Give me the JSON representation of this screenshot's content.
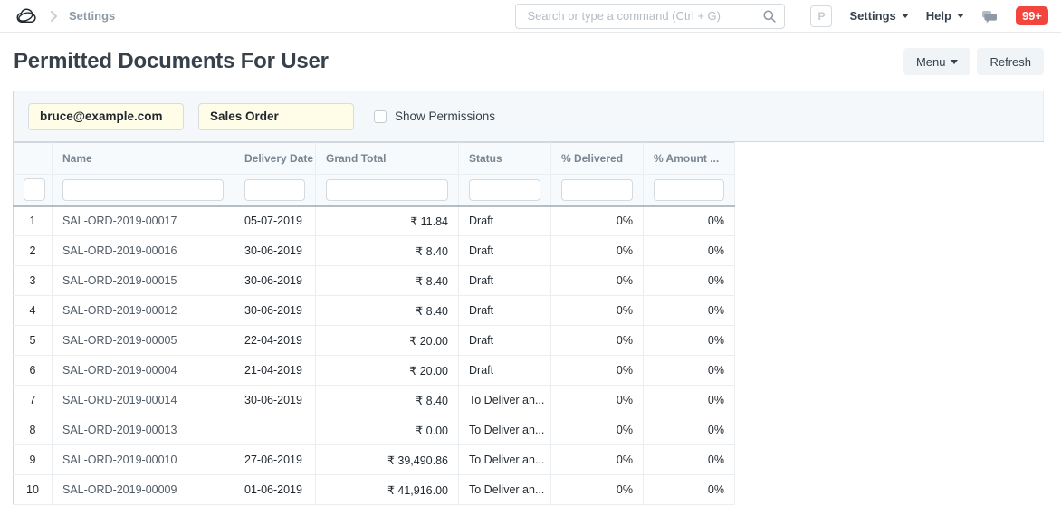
{
  "navbar": {
    "breadcrumb": "Settings",
    "search_placeholder": "Search or type a command (Ctrl + G)",
    "avatar_letter": "P",
    "settings_label": "Settings",
    "help_label": "Help",
    "notification_count": "99+"
  },
  "page": {
    "title": "Permitted Documents For User",
    "menu_button": "Menu",
    "refresh_button": "Refresh"
  },
  "filters": {
    "user_value": "bruce@example.com",
    "doctype_value": "Sales Order",
    "show_permissions_label": "Show Permissions",
    "show_permissions_checked": false
  },
  "table": {
    "columns": [
      {
        "key": "idx",
        "label": ""
      },
      {
        "key": "name",
        "label": "Name"
      },
      {
        "key": "delivery_date",
        "label": "Delivery Date"
      },
      {
        "key": "grand_total",
        "label": "Grand Total"
      },
      {
        "key": "status",
        "label": "Status"
      },
      {
        "key": "pct_delivered",
        "label": "% Delivered"
      },
      {
        "key": "pct_amount",
        "label": "% Amount ..."
      }
    ],
    "rows": [
      {
        "idx": "1",
        "name": "SAL-ORD-2019-00017",
        "delivery_date": "05-07-2019",
        "grand_total": "₹ 11.84",
        "status": "Draft",
        "pct_delivered": "0%",
        "pct_amount": "0%"
      },
      {
        "idx": "2",
        "name": "SAL-ORD-2019-00016",
        "delivery_date": "30-06-2019",
        "grand_total": "₹ 8.40",
        "status": "Draft",
        "pct_delivered": "0%",
        "pct_amount": "0%"
      },
      {
        "idx": "3",
        "name": "SAL-ORD-2019-00015",
        "delivery_date": "30-06-2019",
        "grand_total": "₹ 8.40",
        "status": "Draft",
        "pct_delivered": "0%",
        "pct_amount": "0%"
      },
      {
        "idx": "4",
        "name": "SAL-ORD-2019-00012",
        "delivery_date": "30-06-2019",
        "grand_total": "₹ 8.40",
        "status": "Draft",
        "pct_delivered": "0%",
        "pct_amount": "0%"
      },
      {
        "idx": "5",
        "name": "SAL-ORD-2019-00005",
        "delivery_date": "22-04-2019",
        "grand_total": "₹ 20.00",
        "status": "Draft",
        "pct_delivered": "0%",
        "pct_amount": "0%"
      },
      {
        "idx": "6",
        "name": "SAL-ORD-2019-00004",
        "delivery_date": "21-04-2019",
        "grand_total": "₹ 20.00",
        "status": "Draft",
        "pct_delivered": "0%",
        "pct_amount": "0%"
      },
      {
        "idx": "7",
        "name": "SAL-ORD-2019-00014",
        "delivery_date": "30-06-2019",
        "grand_total": "₹ 8.40",
        "status": "To Deliver an...",
        "pct_delivered": "0%",
        "pct_amount": "0%"
      },
      {
        "idx": "8",
        "name": "SAL-ORD-2019-00013",
        "delivery_date": "",
        "grand_total": "₹ 0.00",
        "status": "To Deliver an...",
        "pct_delivered": "0%",
        "pct_amount": "0%"
      },
      {
        "idx": "9",
        "name": "SAL-ORD-2019-00010",
        "delivery_date": "27-06-2019",
        "grand_total": "₹ 39,490.86",
        "status": "To Deliver an...",
        "pct_delivered": "0%",
        "pct_amount": "0%"
      },
      {
        "idx": "10",
        "name": "SAL-ORD-2019-00009",
        "delivery_date": "01-06-2019",
        "grand_total": "₹ 41,916.00",
        "status": "To Deliver an...",
        "pct_delivered": "0%",
        "pct_amount": "0%"
      }
    ]
  },
  "colors": {
    "badge_red": "#f2453d",
    "filter_input_yellow": "#fffce7",
    "table_header_bg": "#f7fafc",
    "band_bg": "#f5f8fa"
  }
}
